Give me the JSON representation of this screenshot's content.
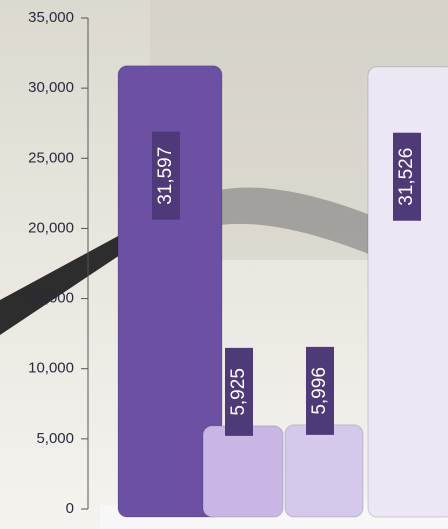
{
  "chart_data": {
    "type": "bar",
    "categories": [
      null,
      null,
      null,
      null
    ],
    "values": [
      31597,
      5925,
      5996,
      31526
    ],
    "value_labels": [
      "31,597",
      "5,925",
      "5,996",
      "31,526"
    ],
    "colors": [
      "#6b50a3",
      "#c8b7e5",
      "#d5c9eb",
      "#ece6f5"
    ],
    "ylim": [
      0,
      35000
    ],
    "yticks": [
      0,
      {
        "value": 5000,
        "label": "5,000"
      },
      {
        "value": 10000,
        "label": "10,000"
      },
      {
        "value": 15000,
        "label": "15,000"
      },
      {
        "value": 20000,
        "label": "20,000"
      },
      {
        "value": 25000,
        "label": "25,000"
      },
      {
        "value": 30000,
        "label": "30,000"
      },
      {
        "value": 35000,
        "label": "35,000"
      }
    ]
  }
}
